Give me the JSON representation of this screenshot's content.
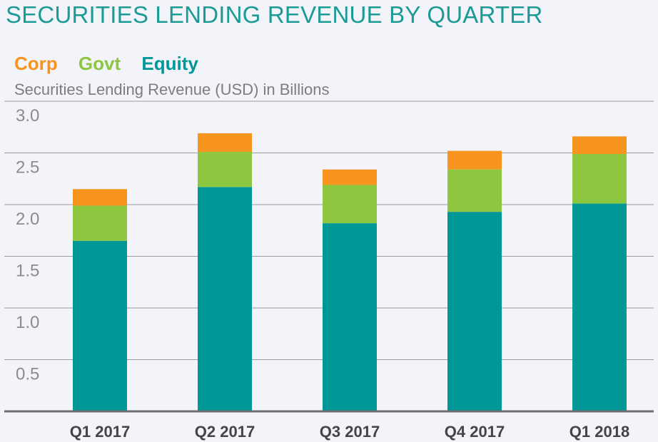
{
  "title": "SECURITIES LENDING REVENUE BY QUARTER",
  "subtitle": "Securities Lending Revenue (USD) in Billions",
  "colors": {
    "equity": "#009797",
    "govt": "#8dc63f",
    "corp": "#f7941d",
    "grid": "#9a9a9a",
    "axis": "#6e6e6e",
    "tick_text": "#8c8c8c",
    "category_text": "#444444"
  },
  "legend": [
    {
      "name": "Corp",
      "color": "#f7941d"
    },
    {
      "name": "Govt",
      "color": "#8dc63f"
    },
    {
      "name": "Equity",
      "color": "#009797"
    }
  ],
  "chart_data": {
    "type": "bar",
    "stacked": true,
    "title": "SECURITIES LENDING REVENUE BY QUARTER",
    "ylabel": "Securities Lending Revenue (USD) in Billions",
    "categories": [
      "Q1 2017",
      "Q2 2017",
      "Q3 2017",
      "Q4 2017",
      "Q1 2018"
    ],
    "series": [
      {
        "name": "Equity",
        "values": [
          1.65,
          2.17,
          1.82,
          1.93,
          2.01
        ]
      },
      {
        "name": "Govt",
        "values": [
          0.34,
          0.34,
          0.37,
          0.41,
          0.48
        ]
      },
      {
        "name": "Corp",
        "values": [
          0.16,
          0.18,
          0.15,
          0.18,
          0.17
        ]
      }
    ],
    "ylim": [
      0,
      3.0
    ],
    "yticks": [
      "0.5",
      "1.0",
      "1.5",
      "2.0",
      "2.5",
      "3.0"
    ],
    "grid": true,
    "legend_position": "top-left"
  }
}
